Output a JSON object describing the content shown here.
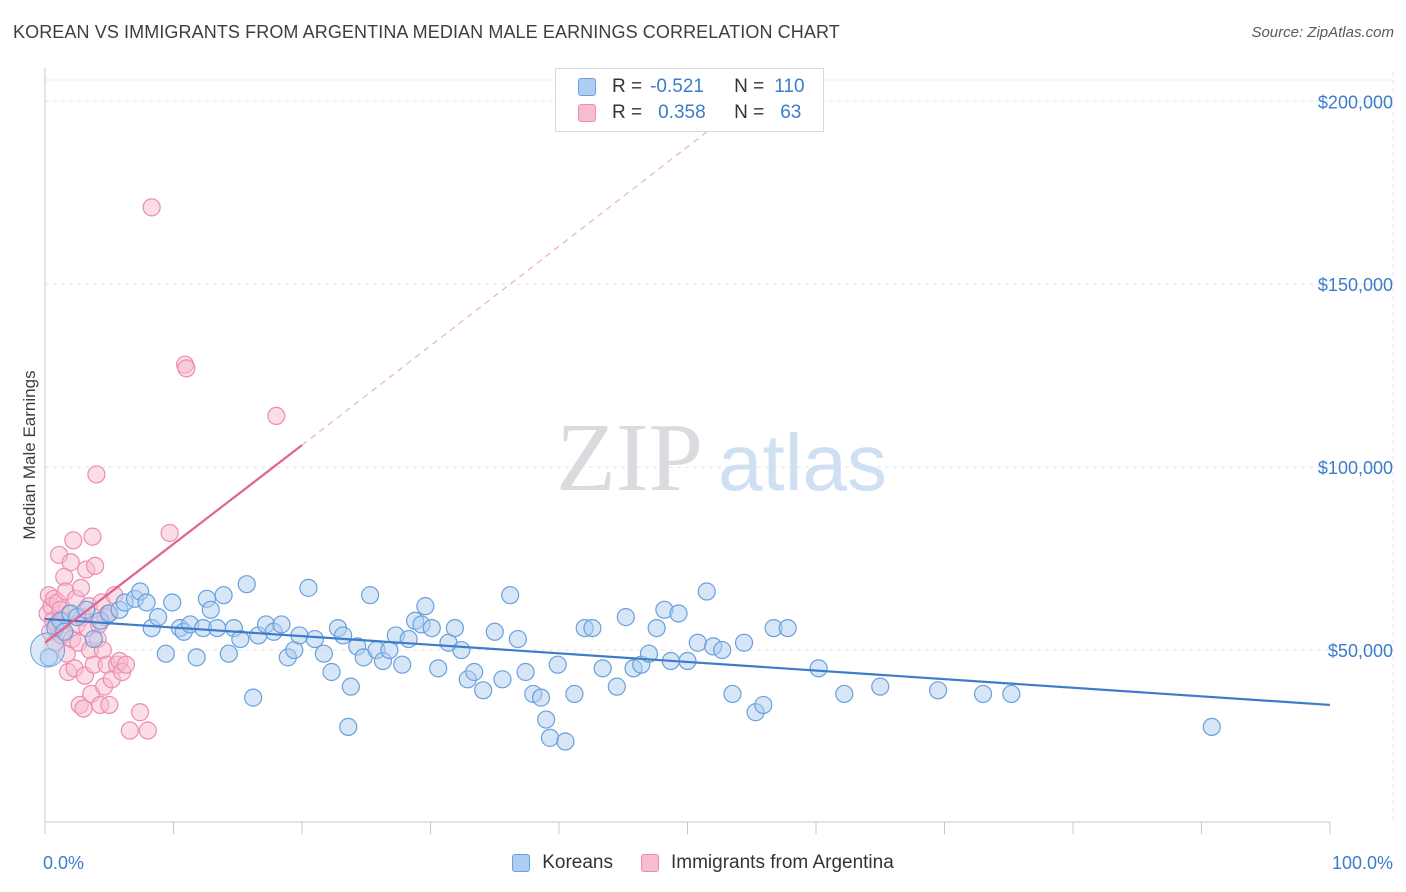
{
  "header": {
    "title": "KOREAN VS IMMIGRANTS FROM ARGENTINA MEDIAN MALE EARNINGS CORRELATION CHART",
    "source": "Source: ZipAtlas.com"
  },
  "watermark": {
    "zip": "ZIP",
    "atlas": "atlas"
  },
  "legend_top": {
    "rows": [
      {
        "r_label": "R =",
        "r_value": "-0.521",
        "n_label": "N =",
        "n_value": "110"
      },
      {
        "r_label": "R =",
        "r_value": "0.358",
        "n_label": "N =",
        "n_value": "63"
      }
    ]
  },
  "legend_bottom": {
    "items": [
      "Koreans",
      "Immigrants from Argentina"
    ]
  },
  "colors": {
    "blue": "#3d7cc9",
    "blue_fill": "#aecdf0",
    "blue_stroke": "#6aa0dc",
    "pink": "#e0648f",
    "pink_fill": "#f7bcd0",
    "pink_stroke": "#ec8db0",
    "grid": "#dfe3e8"
  },
  "chart_data": {
    "type": "scatter",
    "title": "KOREAN VS IMMIGRANTS FROM ARGENTINA MEDIAN MALE EARNINGS CORRELATION CHART",
    "ylabel": "Median Male Earnings",
    "xlim": [
      0,
      100
    ],
    "ylim": [
      3000,
      208000
    ],
    "y_ticks": [
      50000,
      100000,
      150000,
      200000
    ],
    "y_tick_labels": [
      "$50,000",
      "$100,000",
      "$150,000",
      "$200,000"
    ],
    "x_tick_labels": [
      "0.0%",
      "100.0%"
    ],
    "grid": true,
    "legend_placement": "top-center",
    "series": [
      {
        "name": "Koreans",
        "color": "#3d7cc9",
        "r": -0.521,
        "n": 110,
        "trend": {
          "x": [
            0,
            100
          ],
          "y": [
            58500,
            35000
          ]
        },
        "points": [
          [
            0.3,
            48000
          ],
          [
            0.8,
            56000
          ],
          [
            1.2,
            58000
          ],
          [
            1.5,
            55000
          ],
          [
            2.0,
            60000
          ],
          [
            2.5,
            59000
          ],
          [
            3.2,
            61000
          ],
          [
            3.8,
            53000
          ],
          [
            4.3,
            58000
          ],
          [
            5.0,
            60000
          ],
          [
            5.8,
            61000
          ],
          [
            6.2,
            63000
          ],
          [
            7.0,
            64000
          ],
          [
            7.4,
            66000
          ],
          [
            7.9,
            63000
          ],
          [
            8.3,
            56000
          ],
          [
            8.8,
            59000
          ],
          [
            9.4,
            49000
          ],
          [
            9.9,
            63000
          ],
          [
            10.5,
            56000
          ],
          [
            10.8,
            55000
          ],
          [
            11.3,
            57000
          ],
          [
            11.8,
            48000
          ],
          [
            12.3,
            56000
          ],
          [
            12.6,
            64000
          ],
          [
            12.9,
            61000
          ],
          [
            13.4,
            56000
          ],
          [
            13.9,
            65000
          ],
          [
            14.3,
            49000
          ],
          [
            14.7,
            56000
          ],
          [
            15.2,
            53000
          ],
          [
            15.7,
            68000
          ],
          [
            16.2,
            37000
          ],
          [
            16.6,
            54000
          ],
          [
            17.2,
            57000
          ],
          [
            17.8,
            55000
          ],
          [
            18.4,
            57000
          ],
          [
            18.9,
            48000
          ],
          [
            19.4,
            50000
          ],
          [
            19.8,
            54000
          ],
          [
            20.5,
            67000
          ],
          [
            21.0,
            53000
          ],
          [
            21.7,
            49000
          ],
          [
            22.3,
            44000
          ],
          [
            22.8,
            56000
          ],
          [
            23.2,
            54000
          ],
          [
            23.8,
            40000
          ],
          [
            24.3,
            51000
          ],
          [
            24.8,
            48000
          ],
          [
            25.3,
            65000
          ],
          [
            25.8,
            50000
          ],
          [
            26.3,
            47000
          ],
          [
            26.8,
            50000
          ],
          [
            27.3,
            54000
          ],
          [
            27.8,
            46000
          ],
          [
            28.3,
            53000
          ],
          [
            28.8,
            58000
          ],
          [
            29.3,
            57000
          ],
          [
            29.6,
            62000
          ],
          [
            30.1,
            56000
          ],
          [
            30.6,
            45000
          ],
          [
            31.4,
            52000
          ],
          [
            31.9,
            56000
          ],
          [
            32.4,
            50000
          ],
          [
            32.9,
            42000
          ],
          [
            33.4,
            44000
          ],
          [
            34.1,
            39000
          ],
          [
            35.0,
            55000
          ],
          [
            35.6,
            42000
          ],
          [
            36.2,
            65000
          ],
          [
            36.8,
            53000
          ],
          [
            37.4,
            44000
          ],
          [
            38.0,
            38000
          ],
          [
            38.6,
            37000
          ],
          [
            39.0,
            31000
          ],
          [
            39.3,
            26000
          ],
          [
            39.9,
            46000
          ],
          [
            40.5,
            25000
          ],
          [
            41.2,
            38000
          ],
          [
            42.0,
            56000
          ],
          [
            42.6,
            56000
          ],
          [
            43.4,
            45000
          ],
          [
            44.5,
            40000
          ],
          [
            45.2,
            59000
          ],
          [
            45.8,
            45000
          ],
          [
            46.4,
            46000
          ],
          [
            47.0,
            49000
          ],
          [
            47.6,
            56000
          ],
          [
            48.2,
            61000
          ],
          [
            48.7,
            47000
          ],
          [
            49.3,
            60000
          ],
          [
            50.0,
            47000
          ],
          [
            50.8,
            52000
          ],
          [
            51.5,
            66000
          ],
          [
            52.0,
            51000
          ],
          [
            52.7,
            50000
          ],
          [
            53.5,
            38000
          ],
          [
            54.4,
            52000
          ],
          [
            55.3,
            33000
          ],
          [
            55.9,
            35000
          ],
          [
            56.7,
            56000
          ],
          [
            57.8,
            56000
          ],
          [
            60.2,
            45000
          ],
          [
            62.2,
            38000
          ],
          [
            65.0,
            40000
          ],
          [
            69.5,
            39000
          ],
          [
            73.0,
            38000
          ],
          [
            75.2,
            38000
          ],
          [
            90.8,
            29000
          ],
          [
            23.6,
            29000
          ]
        ]
      },
      {
        "name": "Immigrants from Argentina",
        "color": "#e0648f",
        "r": 0.358,
        "n": 63,
        "trend": {
          "x": [
            0,
            20
          ],
          "y": [
            52000,
            106000
          ]
        },
        "trend_dashed": {
          "x": [
            20,
            52
          ],
          "y": [
            106000,
            193000
          ]
        },
        "points": [
          [
            0.2,
            60000
          ],
          [
            0.3,
            65000
          ],
          [
            0.4,
            55000
          ],
          [
            0.5,
            62000
          ],
          [
            0.6,
            58000
          ],
          [
            0.7,
            64000
          ],
          [
            0.8,
            52000
          ],
          [
            0.9,
            57000
          ],
          [
            1.0,
            63000
          ],
          [
            1.1,
            76000
          ],
          [
            1.2,
            61000
          ],
          [
            1.3,
            54000
          ],
          [
            1.4,
            58000
          ],
          [
            1.5,
            70000
          ],
          [
            1.6,
            66000
          ],
          [
            1.7,
            49000
          ],
          [
            1.8,
            44000
          ],
          [
            1.9,
            60000
          ],
          [
            2.0,
            74000
          ],
          [
            2.1,
            53000
          ],
          [
            2.2,
            80000
          ],
          [
            2.3,
            45000
          ],
          [
            2.4,
            64000
          ],
          [
            2.5,
            57000
          ],
          [
            2.6,
            52000
          ],
          [
            2.7,
            35000
          ],
          [
            2.8,
            67000
          ],
          [
            2.9,
            59000
          ],
          [
            3.0,
            34000
          ],
          [
            3.1,
            43000
          ],
          [
            3.2,
            72000
          ],
          [
            3.3,
            56000
          ],
          [
            3.4,
            62000
          ],
          [
            3.5,
            50000
          ],
          [
            3.6,
            38000
          ],
          [
            3.7,
            81000
          ],
          [
            3.8,
            46000
          ],
          [
            3.9,
            73000
          ],
          [
            4.0,
            98000
          ],
          [
            4.1,
            53000
          ],
          [
            4.2,
            57000
          ],
          [
            4.3,
            35000
          ],
          [
            4.4,
            63000
          ],
          [
            4.5,
            50000
          ],
          [
            4.6,
            40000
          ],
          [
            4.7,
            59000
          ],
          [
            4.8,
            46000
          ],
          [
            4.9,
            60000
          ],
          [
            5.0,
            35000
          ],
          [
            5.2,
            42000
          ],
          [
            5.4,
            65000
          ],
          [
            5.6,
            46000
          ],
          [
            5.8,
            47000
          ],
          [
            6.0,
            44000
          ],
          [
            6.3,
            46000
          ],
          [
            6.6,
            28000
          ],
          [
            7.4,
            33000
          ],
          [
            8.0,
            28000
          ],
          [
            8.3,
            171000
          ],
          [
            9.7,
            82000
          ],
          [
            10.9,
            128000
          ],
          [
            11.0,
            127000
          ],
          [
            18.0,
            114000
          ]
        ]
      }
    ]
  }
}
